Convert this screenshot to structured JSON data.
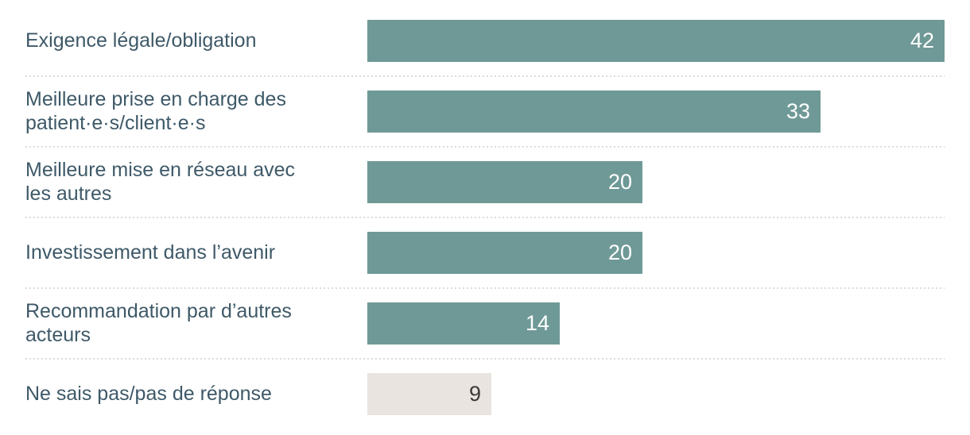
{
  "chart_data": {
    "type": "bar",
    "orientation": "horizontal",
    "title": "",
    "xlabel": "",
    "ylabel": "",
    "legend": "none",
    "grid": "none",
    "axes_shown": false,
    "value_labels_shown": true,
    "xlim": [
      0,
      42
    ],
    "categories": [
      "Exigence légale/obligation",
      "Meilleure prise en charge des\npatient·e·s/client·e·s",
      "Meilleure mise en réseau avec\nles autres",
      "Investissement dans l’avenir",
      "Recommandation par d’autres\nacteurs",
      "Ne sais pas/pas de réponse"
    ],
    "values": [
      42,
      33,
      20,
      20,
      14,
      9
    ],
    "muted_category_index": 5
  },
  "colors": {
    "bar": "#6f9997",
    "bar_muted": "#e9e4df",
    "label_text": "#3e5968",
    "value_text": "#ffffff",
    "value_text_muted": "#3a3a3a",
    "separator": "#dcdcdc",
    "background": "#ffffff"
  }
}
